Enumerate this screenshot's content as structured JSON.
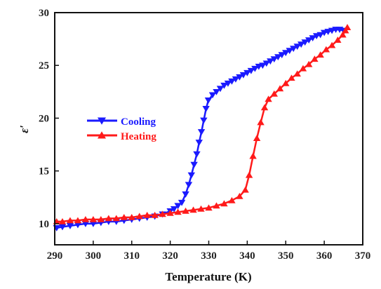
{
  "chart_data": {
    "type": "line",
    "xlabel": "Temperature (K)",
    "ylabel": "ε′",
    "xlim": [
      290,
      370
    ],
    "ylim": [
      8.0,
      30.0
    ],
    "xticks": [
      290,
      300,
      310,
      320,
      330,
      340,
      350,
      360,
      370
    ],
    "yticks": [
      10,
      15,
      20,
      25,
      30
    ],
    "legend_position": "center-left",
    "series": [
      {
        "name": "Cooling",
        "color": "#1a1aff",
        "marker": "triangle-down",
        "x": [
          290.5,
          292,
          294,
          296,
          298,
          300,
          302,
          304,
          306,
          308,
          310,
          312,
          314,
          316,
          318,
          320,
          321,
          322,
          323,
          324,
          324.8,
          325.5,
          326.2,
          326.9,
          327.5,
          328.1,
          328.7,
          329.3,
          329.9,
          331,
          332,
          333,
          334,
          335,
          336,
          337,
          338,
          339,
          340,
          341,
          342,
          343,
          344,
          345,
          346,
          347,
          348,
          349,
          350,
          351,
          352,
          353,
          354,
          355,
          356,
          357,
          358,
          359,
          360,
          361,
          362,
          363,
          364,
          365
        ],
        "y": [
          9.6,
          9.7,
          9.8,
          9.9,
          10.0,
          10.0,
          10.1,
          10.2,
          10.2,
          10.3,
          10.4,
          10.5,
          10.6,
          10.7,
          10.9,
          11.2,
          11.4,
          11.7,
          12.0,
          12.8,
          13.7,
          14.6,
          15.6,
          16.6,
          17.7,
          18.7,
          19.8,
          20.9,
          21.7,
          22.2,
          22.5,
          22.8,
          23.1,
          23.3,
          23.5,
          23.7,
          23.9,
          24.1,
          24.3,
          24.5,
          24.7,
          24.9,
          25.0,
          25.2,
          25.4,
          25.6,
          25.8,
          26.0,
          26.2,
          26.4,
          26.6,
          26.8,
          27.0,
          27.2,
          27.4,
          27.6,
          27.8,
          27.9,
          28.1,
          28.2,
          28.3,
          28.4,
          28.4,
          28.3
        ]
      },
      {
        "name": "Heating",
        "color": "#ff1a1a",
        "marker": "triangle-up",
        "x": [
          290.5,
          292,
          294,
          296,
          298,
          300,
          302,
          304,
          306,
          308,
          310,
          312,
          314,
          316,
          318,
          320,
          322,
          324,
          326,
          328,
          330,
          332,
          334,
          336,
          338,
          339.5,
          340.5,
          341.5,
          342.5,
          343.5,
          344.5,
          345.5,
          347,
          348.5,
          350,
          351.5,
          353,
          354.5,
          356,
          357.5,
          359,
          360.5,
          362,
          363.5,
          364.8,
          365.5,
          366
        ],
        "y": [
          10.2,
          10.2,
          10.3,
          10.3,
          10.4,
          10.4,
          10.4,
          10.5,
          10.5,
          10.6,
          10.6,
          10.7,
          10.8,
          10.8,
          10.9,
          11.0,
          11.1,
          11.2,
          11.3,
          11.4,
          11.5,
          11.7,
          11.9,
          12.2,
          12.6,
          13.2,
          14.6,
          16.4,
          18.1,
          19.6,
          21.0,
          21.8,
          22.3,
          22.8,
          23.3,
          23.8,
          24.2,
          24.7,
          25.1,
          25.6,
          26.0,
          26.5,
          26.9,
          27.4,
          27.9,
          28.3,
          28.6
        ]
      }
    ]
  }
}
